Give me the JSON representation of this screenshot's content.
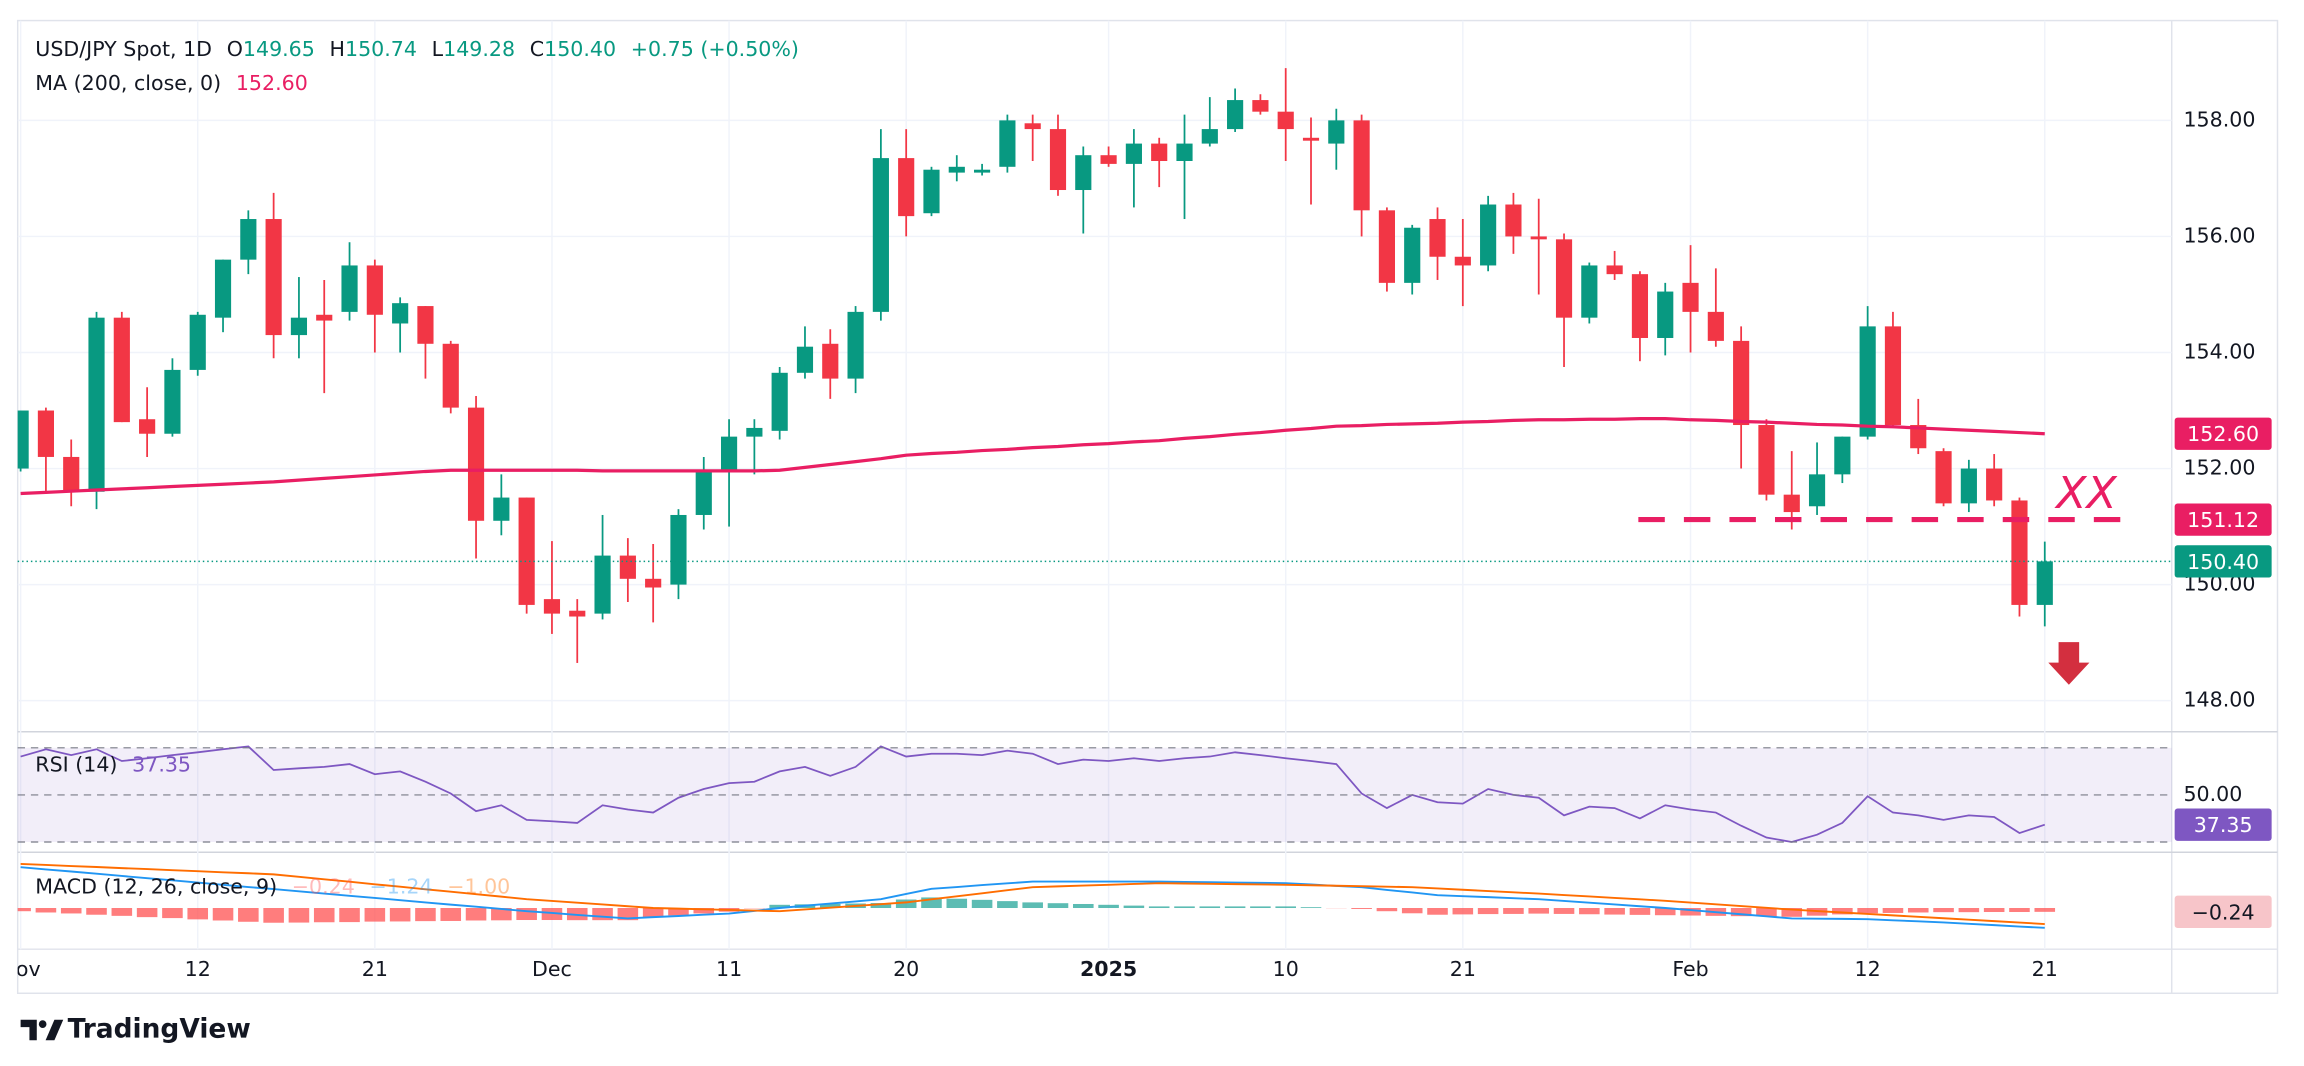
{
  "chart_data": {
    "type": "candlestick",
    "title": "USD/JPY Spot, 1D",
    "ohlc": [
      {
        "key": "O",
        "value": "149.65"
      },
      {
        "key": "H",
        "value": "150.74"
      },
      {
        "key": "L",
        "value": "149.28"
      },
      {
        "key": "C",
        "value": "150.40"
      }
    ],
    "change": "+0.75 (+0.50%)",
    "categories": [
      "Nov",
      null,
      null,
      null,
      null,
      null,
      null,
      "12",
      null,
      null,
      null,
      null,
      null,
      null,
      "21",
      null,
      null,
      null,
      null,
      null,
      null,
      "Dec",
      null,
      null,
      null,
      null,
      null,
      null,
      "11",
      null,
      null,
      null,
      null,
      null,
      null,
      "20",
      null,
      null,
      null,
      null,
      null,
      null,
      null,
      "2025",
      null,
      null,
      null,
      null,
      null,
      null,
      "10",
      null,
      null,
      null,
      null,
      null,
      null,
      "21",
      null,
      null,
      null,
      null,
      null,
      null,
      null,
      null,
      "Feb",
      null,
      null,
      null,
      null,
      null,
      null,
      "12",
      null,
      null,
      null,
      null,
      null,
      null,
      "21"
    ],
    "open": [
      152.0,
      153.0,
      152.2,
      151.6,
      154.6,
      152.85,
      152.6,
      153.7,
      154.6,
      155.6,
      156.3,
      154.3,
      154.65,
      154.7,
      155.5,
      154.5,
      154.8,
      154.15,
      153.05,
      151.1,
      151.5,
      149.75,
      149.55,
      149.5,
      150.5,
      150.1,
      150.0,
      151.2,
      151.95,
      152.55,
      152.65,
      153.65,
      154.15,
      153.55,
      154.7,
      157.35,
      156.4,
      157.1,
      157.1,
      157.2,
      157.95,
      157.85,
      156.8,
      157.4,
      157.25,
      157.6,
      157.3,
      157.6,
      157.85,
      158.35,
      158.15,
      157.7,
      157.6,
      158.0,
      156.45,
      155.2,
      156.3,
      155.65,
      155.5,
      156.55,
      156.0,
      155.95,
      154.6,
      155.5,
      155.35,
      154.25,
      155.2,
      154.7,
      154.2,
      152.75,
      151.55,
      151.35,
      151.9,
      152.55,
      154.45,
      152.75,
      152.3,
      151.4,
      152.0,
      151.45,
      149.65
    ],
    "high": [
      153.0,
      153.05,
      152.5,
      154.7,
      154.7,
      153.4,
      153.9,
      154.7,
      155.6,
      156.45,
      156.75,
      155.3,
      155.25,
      155.9,
      155.6,
      154.95,
      154.8,
      154.2,
      153.25,
      151.9,
      151.5,
      150.75,
      149.75,
      151.2,
      150.8,
      150.7,
      151.3,
      152.2,
      152.85,
      152.85,
      153.75,
      154.45,
      154.4,
      154.8,
      157.85,
      157.85,
      157.2,
      157.4,
      157.25,
      158.1,
      158.1,
      158.1,
      157.55,
      157.55,
      157.85,
      157.7,
      158.1,
      158.4,
      158.55,
      158.45,
      158.9,
      158.05,
      158.2,
      158.1,
      156.5,
      156.2,
      156.5,
      156.3,
      156.7,
      156.75,
      156.65,
      156.05,
      155.55,
      155.75,
      155.4,
      155.2,
      155.85,
      155.45,
      154.45,
      152.85,
      152.3,
      152.45,
      152.55,
      154.8,
      154.7,
      153.2,
      152.35,
      152.15,
      152.25,
      151.5,
      150.74
    ],
    "low": [
      151.95,
      151.6,
      151.35,
      151.3,
      152.8,
      152.2,
      152.55,
      153.6,
      154.35,
      155.35,
      153.9,
      153.9,
      153.3,
      154.55,
      154.0,
      154.0,
      153.55,
      152.95,
      150.45,
      150.85,
      149.5,
      149.15,
      148.65,
      149.4,
      149.7,
      149.35,
      149.75,
      150.95,
      151.0,
      151.9,
      152.5,
      153.55,
      153.2,
      153.3,
      154.55,
      156.0,
      156.35,
      156.95,
      157.05,
      157.1,
      157.3,
      156.7,
      156.05,
      157.2,
      156.5,
      156.85,
      156.3,
      157.55,
      157.8,
      158.1,
      157.3,
      156.55,
      157.15,
      156.0,
      155.05,
      155.0,
      155.25,
      154.8,
      155.4,
      155.7,
      155.0,
      153.75,
      154.5,
      155.25,
      153.85,
      153.95,
      154.0,
      154.1,
      152.0,
      151.45,
      150.95,
      151.2,
      151.75,
      152.5,
      152.7,
      152.25,
      151.35,
      151.25,
      151.35,
      149.45,
      149.28
    ],
    "close": [
      153.0,
      152.2,
      151.6,
      154.6,
      152.8,
      152.6,
      153.7,
      154.65,
      155.6,
      156.3,
      154.3,
      154.6,
      154.55,
      155.5,
      154.65,
      154.85,
      154.15,
      153.05,
      151.1,
      151.5,
      149.65,
      149.5,
      149.45,
      150.5,
      150.1,
      149.95,
      151.2,
      151.95,
      152.55,
      152.7,
      153.65,
      154.1,
      153.55,
      154.7,
      157.35,
      156.35,
      157.15,
      157.2,
      157.15,
      158.0,
      157.85,
      156.8,
      157.4,
      157.25,
      157.6,
      157.3,
      157.6,
      157.85,
      158.35,
      158.15,
      157.85,
      157.65,
      158.0,
      156.45,
      155.2,
      156.15,
      155.65,
      155.5,
      156.55,
      156.0,
      155.95,
      154.6,
      155.5,
      155.35,
      154.25,
      155.05,
      154.7,
      154.2,
      152.75,
      151.55,
      151.25,
      151.9,
      152.55,
      154.45,
      152.75,
      152.35,
      151.4,
      152.0,
      151.45,
      149.65,
      150.4
    ],
    "up_color": "#089981",
    "down_color": "#f23645",
    "ylim": [
      147.49,
      159.72
    ],
    "yticks": [
      {
        "value": 148,
        "label": "148.00"
      },
      {
        "value": 150,
        "label": "150.00"
      },
      {
        "value": 152,
        "label": "152.00"
      },
      {
        "value": 154,
        "label": "154.00"
      },
      {
        "value": 156,
        "label": "156.00"
      },
      {
        "value": 158,
        "label": "158.00"
      }
    ],
    "grid": true,
    "ma": {
      "name": "MA (200, close, 0)",
      "value_label": "152.60",
      "color": "#e91e63",
      "values": [
        151.57,
        151.59,
        151.61,
        151.63,
        151.65,
        151.67,
        151.69,
        151.71,
        151.73,
        151.75,
        151.77,
        151.8,
        151.83,
        151.86,
        151.89,
        151.92,
        151.95,
        151.97,
        151.97,
        151.97,
        151.97,
        151.97,
        151.97,
        151.96,
        151.96,
        151.96,
        151.96,
        151.96,
        151.96,
        151.96,
        151.97,
        152.02,
        152.07,
        152.12,
        152.17,
        152.23,
        152.26,
        152.28,
        152.31,
        152.33,
        152.36,
        152.38,
        152.41,
        152.43,
        152.46,
        152.48,
        152.52,
        152.55,
        152.59,
        152.62,
        152.66,
        152.69,
        152.73,
        152.74,
        152.76,
        152.77,
        152.78,
        152.8,
        152.81,
        152.83,
        152.84,
        152.84,
        152.85,
        152.85,
        152.86,
        152.86,
        152.84,
        152.83,
        152.81,
        152.8,
        152.78,
        152.76,
        152.75,
        152.73,
        152.72,
        152.7,
        152.68,
        152.66,
        152.64,
        152.62,
        152.6
      ]
    },
    "level": {
      "value": 151.12,
      "label": "151.12",
      "text": "XX",
      "color": "#e91e63"
    },
    "last_price": {
      "value": 150.4,
      "label": "150.40",
      "color": "#089981"
    },
    "rsi": {
      "name": "RSI (14)",
      "value_label": "37.35",
      "color": "#7e57c2",
      "ylim": [
        26.9,
        75.6
      ],
      "yticks": [
        {
          "value": 50,
          "label": "50.00"
        }
      ],
      "levels": [
        70,
        50,
        30
      ],
      "values": [
        66.3,
        69.4,
        66.9,
        69.4,
        64.4,
        65.6,
        66.9,
        68.1,
        69.4,
        70.6,
        60.6,
        61.3,
        61.9,
        63.1,
        58.8,
        60.0,
        55.6,
        50.6,
        43.1,
        45.6,
        39.4,
        38.8,
        38.1,
        45.6,
        43.8,
        42.5,
        48.8,
        52.5,
        55.0,
        55.6,
        60.0,
        61.9,
        58.1,
        61.9,
        70.6,
        66.3,
        67.5,
        67.5,
        66.9,
        68.8,
        67.5,
        63.1,
        65.0,
        64.4,
        65.6,
        64.4,
        65.6,
        66.3,
        68.1,
        66.9,
        65.6,
        64.4,
        63.1,
        50.6,
        44.4,
        50.0,
        46.9,
        46.3,
        52.5,
        50.0,
        48.8,
        41.3,
        45.0,
        44.4,
        40.0,
        45.6,
        43.8,
        42.5,
        36.9,
        31.9,
        30.0,
        33.1,
        38.1,
        49.4,
        42.5,
        41.3,
        39.4,
        41.3,
        40.6,
        33.8,
        37.35
      ]
    },
    "macd": {
      "name": "MACD (12, 26, close, 9)",
      "value_labels": [
        "−0.24",
        "−1.24",
        "−1.00"
      ],
      "ylim": [
        -2.48,
        3.3
      ],
      "macd_color": "#2196f3",
      "signal_color": "#ff6d00",
      "pos_color": "#26a69a",
      "neg_color": "#ff5252",
      "histogram": [
        -0.2,
        -0.28,
        -0.34,
        -0.42,
        -0.49,
        -0.57,
        -0.63,
        -0.71,
        -0.78,
        -0.86,
        -0.92,
        -0.91,
        -0.89,
        -0.88,
        -0.85,
        -0.84,
        -0.82,
        -0.81,
        -0.78,
        -0.77,
        -0.75,
        -0.75,
        -0.76,
        -0.76,
        -0.76,
        -0.57,
        -0.46,
        -0.34,
        -0.23,
        -0.02,
        0.2,
        0.23,
        0.26,
        0.28,
        0.31,
        0.53,
        0.66,
        0.58,
        0.51,
        0.43,
        0.35,
        0.3,
        0.25,
        0.2,
        0.15,
        0.1,
        0.1,
        0.1,
        0.1,
        0.1,
        0.1,
        0.05,
        -0.01,
        -0.06,
        -0.2,
        -0.33,
        -0.42,
        -0.4,
        -0.38,
        -0.37,
        -0.35,
        -0.37,
        -0.39,
        -0.41,
        -0.43,
        -0.45,
        -0.47,
        -0.49,
        -0.51,
        -0.53,
        -0.55,
        -0.48,
        -0.4,
        -0.33,
        -0.31,
        -0.28,
        -0.26,
        -0.26,
        -0.25,
        -0.25,
        -0.24
      ],
      "macd": [
        2.55,
        2.41,
        2.28,
        2.14,
        2.0,
        1.86,
        1.73,
        1.59,
        1.45,
        1.31,
        1.18,
        1.04,
        0.9,
        0.76,
        0.63,
        0.49,
        0.35,
        0.21,
        0.08,
        -0.06,
        -0.2,
        -0.31,
        -0.43,
        -0.54,
        -0.65,
        -0.57,
        -0.5,
        -0.42,
        -0.35,
        -0.18,
        0,
        0.14,
        0.28,
        0.41,
        0.55,
        0.88,
        1.2,
        1.31,
        1.43,
        1.54,
        1.65,
        1.65,
        1.65,
        1.65,
        1.65,
        1.65,
        1.63,
        1.61,
        1.59,
        1.57,
        1.55,
        1.47,
        1.38,
        1.3,
        1.13,
        0.97,
        0.8,
        0.74,
        0.68,
        0.61,
        0.55,
        0.44,
        0.33,
        0.22,
        0.11,
        0,
        -0.13,
        -0.26,
        -0.39,
        -0.52,
        -0.65,
        -0.67,
        -0.68,
        -0.7,
        -0.77,
        -0.83,
        -0.9,
        -0.99,
        -1.07,
        -1.16,
        -1.24
      ],
      "signal": [
        2.75,
        2.69,
        2.62,
        2.56,
        2.49,
        2.43,
        2.36,
        2.3,
        2.23,
        2.17,
        2.1,
        1.95,
        1.79,
        1.64,
        1.48,
        1.33,
        1.17,
        1.02,
        0.86,
        0.71,
        0.55,
        0.44,
        0.33,
        0.22,
        0.11,
        0,
        -0.04,
        -0.08,
        -0.12,
        -0.16,
        -0.2,
        -0.09,
        0.02,
        0.13,
        0.24,
        0.35,
        0.54,
        0.73,
        0.92,
        1.11,
        1.3,
        1.35,
        1.4,
        1.45,
        1.5,
        1.55,
        1.53,
        1.51,
        1.49,
        1.47,
        1.45,
        1.42,
        1.39,
        1.36,
        1.33,
        1.3,
        1.22,
        1.14,
        1.06,
        0.98,
        0.9,
        0.81,
        0.72,
        0.63,
        0.54,
        0.45,
        0.34,
        0.23,
        0.12,
        0.01,
        -0.1,
        -0.19,
        -0.28,
        -0.37,
        -0.46,
        -0.55,
        -0.64,
        -0.73,
        -0.82,
        -0.91,
        -1.0
      ]
    },
    "watermark": "TradingView"
  }
}
